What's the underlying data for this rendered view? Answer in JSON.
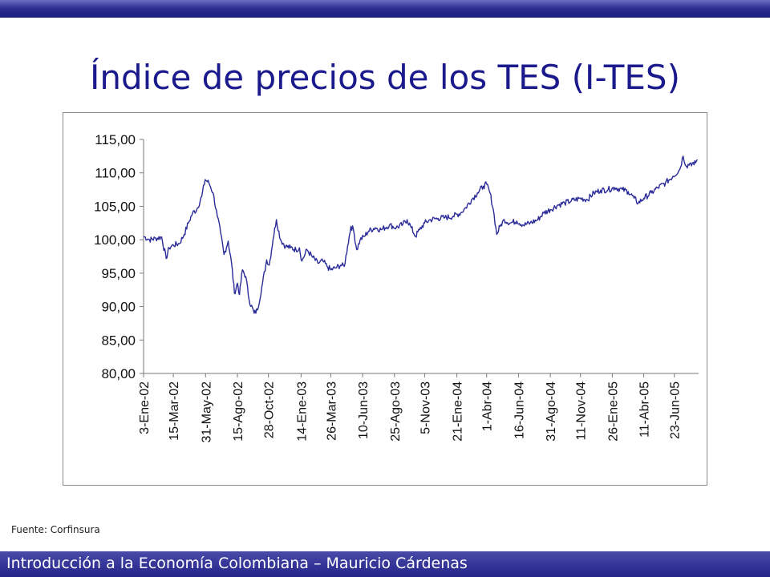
{
  "slide": {
    "title": "Índice de precios de los TES (I-TES)",
    "source": "Fuente: Corfinsura",
    "footer": "Introducción a la Economía Colombiana – Mauricio Cárdenas"
  },
  "colors": {
    "series": "#2b2b9a",
    "title": "#1a1a8c",
    "bar": "#23238a"
  },
  "chart_data": {
    "type": "line",
    "title": "",
    "xlabel": "",
    "ylabel": "",
    "ylim": [
      80,
      115
    ],
    "grid": false,
    "legend": "none",
    "yticks": [
      "115,00",
      "110,00",
      "105,00",
      "100,00",
      "95,00",
      "90,00",
      "85,00",
      "80,00"
    ],
    "ytick_values": [
      115,
      110,
      105,
      100,
      95,
      90,
      85,
      80
    ],
    "xticks": [
      "3-Ene-02",
      "15-Mar-02",
      "31-May-02",
      "15-Ago-02",
      "28-Oct-02",
      "14-Ene-03",
      "26-Mar-03",
      "10-Jun-03",
      "25-Ago-03",
      "5-Nov-03",
      "21-Ene-04",
      "1-Abr-04",
      "16-Jun-04",
      "31-Ago-04",
      "11-Nov-04",
      "26-Ene-05",
      "11-Abr-05",
      "23-Jun-05"
    ],
    "xtick_dates": [
      "2002-01-03",
      "2002-03-15",
      "2002-05-31",
      "2002-08-15",
      "2002-10-28",
      "2003-01-14",
      "2003-03-26",
      "2003-06-10",
      "2003-08-25",
      "2003-11-05",
      "2004-01-21",
      "2004-04-01",
      "2004-06-16",
      "2004-08-31",
      "2004-11-11",
      "2005-01-26",
      "2005-04-11",
      "2005-06-23"
    ],
    "x_range": [
      "2002-01-03",
      "2005-08-20"
    ],
    "series": [
      {
        "values": [
          [
            "2002-01-03",
            100.5
          ],
          [
            "2002-01-17",
            100.0
          ],
          [
            "2002-02-01",
            100.2
          ],
          [
            "2002-02-15",
            100.4
          ],
          [
            "2002-02-26",
            97.2
          ],
          [
            "2002-03-05",
            98.8
          ],
          [
            "2002-03-15",
            99.2
          ],
          [
            "2002-03-29",
            99.4
          ],
          [
            "2002-04-10",
            100.8
          ],
          [
            "2002-04-20",
            102.5
          ],
          [
            "2002-04-30",
            104.0
          ],
          [
            "2002-05-10",
            104.5
          ],
          [
            "2002-05-22",
            106.5
          ],
          [
            "2002-05-30",
            109.0
          ],
          [
            "2002-06-08",
            108.5
          ],
          [
            "2002-06-18",
            107.0
          ],
          [
            "2002-06-28",
            103.5
          ],
          [
            "2002-07-06",
            101.0
          ],
          [
            "2002-07-14",
            97.8
          ],
          [
            "2002-07-24",
            99.8
          ],
          [
            "2002-08-01",
            96.5
          ],
          [
            "2002-08-08",
            92.0
          ],
          [
            "2002-08-15",
            93.5
          ],
          [
            "2002-08-20",
            91.8
          ],
          [
            "2002-08-27",
            95.5
          ],
          [
            "2002-09-04",
            94.5
          ],
          [
            "2002-09-12",
            91.0
          ],
          [
            "2002-09-24",
            89.0
          ],
          [
            "2002-10-02",
            89.5
          ],
          [
            "2002-10-14",
            93.5
          ],
          [
            "2002-10-24",
            97.0
          ],
          [
            "2002-10-30",
            96.2
          ],
          [
            "2002-11-08",
            100.0
          ],
          [
            "2002-11-16",
            103.0
          ],
          [
            "2002-11-26",
            100.0
          ],
          [
            "2002-12-08",
            99.0
          ],
          [
            "2002-12-20",
            98.8
          ],
          [
            "2003-01-02",
            98.5
          ],
          [
            "2003-01-10",
            98.8
          ],
          [
            "2003-01-16",
            96.8
          ],
          [
            "2003-01-28",
            98.5
          ],
          [
            "2003-02-09",
            97.5
          ],
          [
            "2003-02-23",
            96.5
          ],
          [
            "2003-03-07",
            96.8
          ],
          [
            "2003-03-17",
            96.0
          ],
          [
            "2003-03-26",
            95.5
          ],
          [
            "2003-04-07",
            95.8
          ],
          [
            "2003-04-19",
            96.2
          ],
          [
            "2003-04-27",
            96.0
          ],
          [
            "2003-05-05",
            99.0
          ],
          [
            "2003-05-13",
            102.0
          ],
          [
            "2003-05-19",
            101.5
          ],
          [
            "2003-05-27",
            98.5
          ],
          [
            "2003-06-04",
            100.0
          ],
          [
            "2003-06-14",
            100.5
          ],
          [
            "2003-06-24",
            101.3
          ],
          [
            "2003-07-10",
            101.8
          ],
          [
            "2003-07-24",
            101.5
          ],
          [
            "2003-08-13",
            102.2
          ],
          [
            "2003-08-29",
            101.8
          ],
          [
            "2003-09-14",
            102.3
          ],
          [
            "2003-09-24",
            103.0
          ],
          [
            "2003-10-04",
            101.8
          ],
          [
            "2003-10-14",
            100.5
          ],
          [
            "2003-10-24",
            101.5
          ],
          [
            "2003-11-05",
            102.5
          ],
          [
            "2003-11-19",
            103.0
          ],
          [
            "2003-12-07",
            103.2
          ],
          [
            "2003-12-23",
            103.3
          ],
          [
            "2004-01-12",
            103.5
          ],
          [
            "2004-01-30",
            104.0
          ],
          [
            "2004-02-11",
            104.8
          ],
          [
            "2004-02-25",
            106.0
          ],
          [
            "2004-03-10",
            107.0
          ],
          [
            "2004-03-24",
            108.0
          ],
          [
            "2004-04-01",
            108.3
          ],
          [
            "2004-04-09",
            107.0
          ],
          [
            "2004-04-17",
            104.5
          ],
          [
            "2004-04-25",
            100.8
          ],
          [
            "2004-05-03",
            102.0
          ],
          [
            "2004-05-13",
            103.0
          ],
          [
            "2004-05-27",
            102.5
          ],
          [
            "2004-06-12",
            102.8
          ],
          [
            "2004-06-28",
            102.2
          ],
          [
            "2004-07-14",
            102.5
          ],
          [
            "2004-08-01",
            103.0
          ],
          [
            "2004-08-15",
            104.0
          ],
          [
            "2004-08-31",
            104.5
          ],
          [
            "2004-09-18",
            105.2
          ],
          [
            "2004-10-04",
            105.5
          ],
          [
            "2004-10-20",
            105.8
          ],
          [
            "2004-11-11",
            106.2
          ],
          [
            "2004-11-27",
            106.0
          ],
          [
            "2004-12-13",
            107.0
          ],
          [
            "2004-12-29",
            107.4
          ],
          [
            "2005-01-16",
            107.5
          ],
          [
            "2005-02-01",
            107.8
          ],
          [
            "2005-02-19",
            107.5
          ],
          [
            "2005-03-05",
            107.2
          ],
          [
            "2005-03-19",
            106.2
          ],
          [
            "2005-03-29",
            105.5
          ],
          [
            "2005-04-11",
            106.2
          ],
          [
            "2005-04-29",
            107.0
          ],
          [
            "2005-05-15",
            107.8
          ],
          [
            "2005-06-02",
            108.5
          ],
          [
            "2005-06-20",
            109.5
          ],
          [
            "2005-07-06",
            110.5
          ],
          [
            "2005-07-14",
            112.5
          ],
          [
            "2005-07-22",
            111.0
          ],
          [
            "2005-08-01",
            111.5
          ],
          [
            "2005-08-09",
            111.2
          ],
          [
            "2005-08-17",
            112.0
          ]
        ]
      }
    ]
  }
}
